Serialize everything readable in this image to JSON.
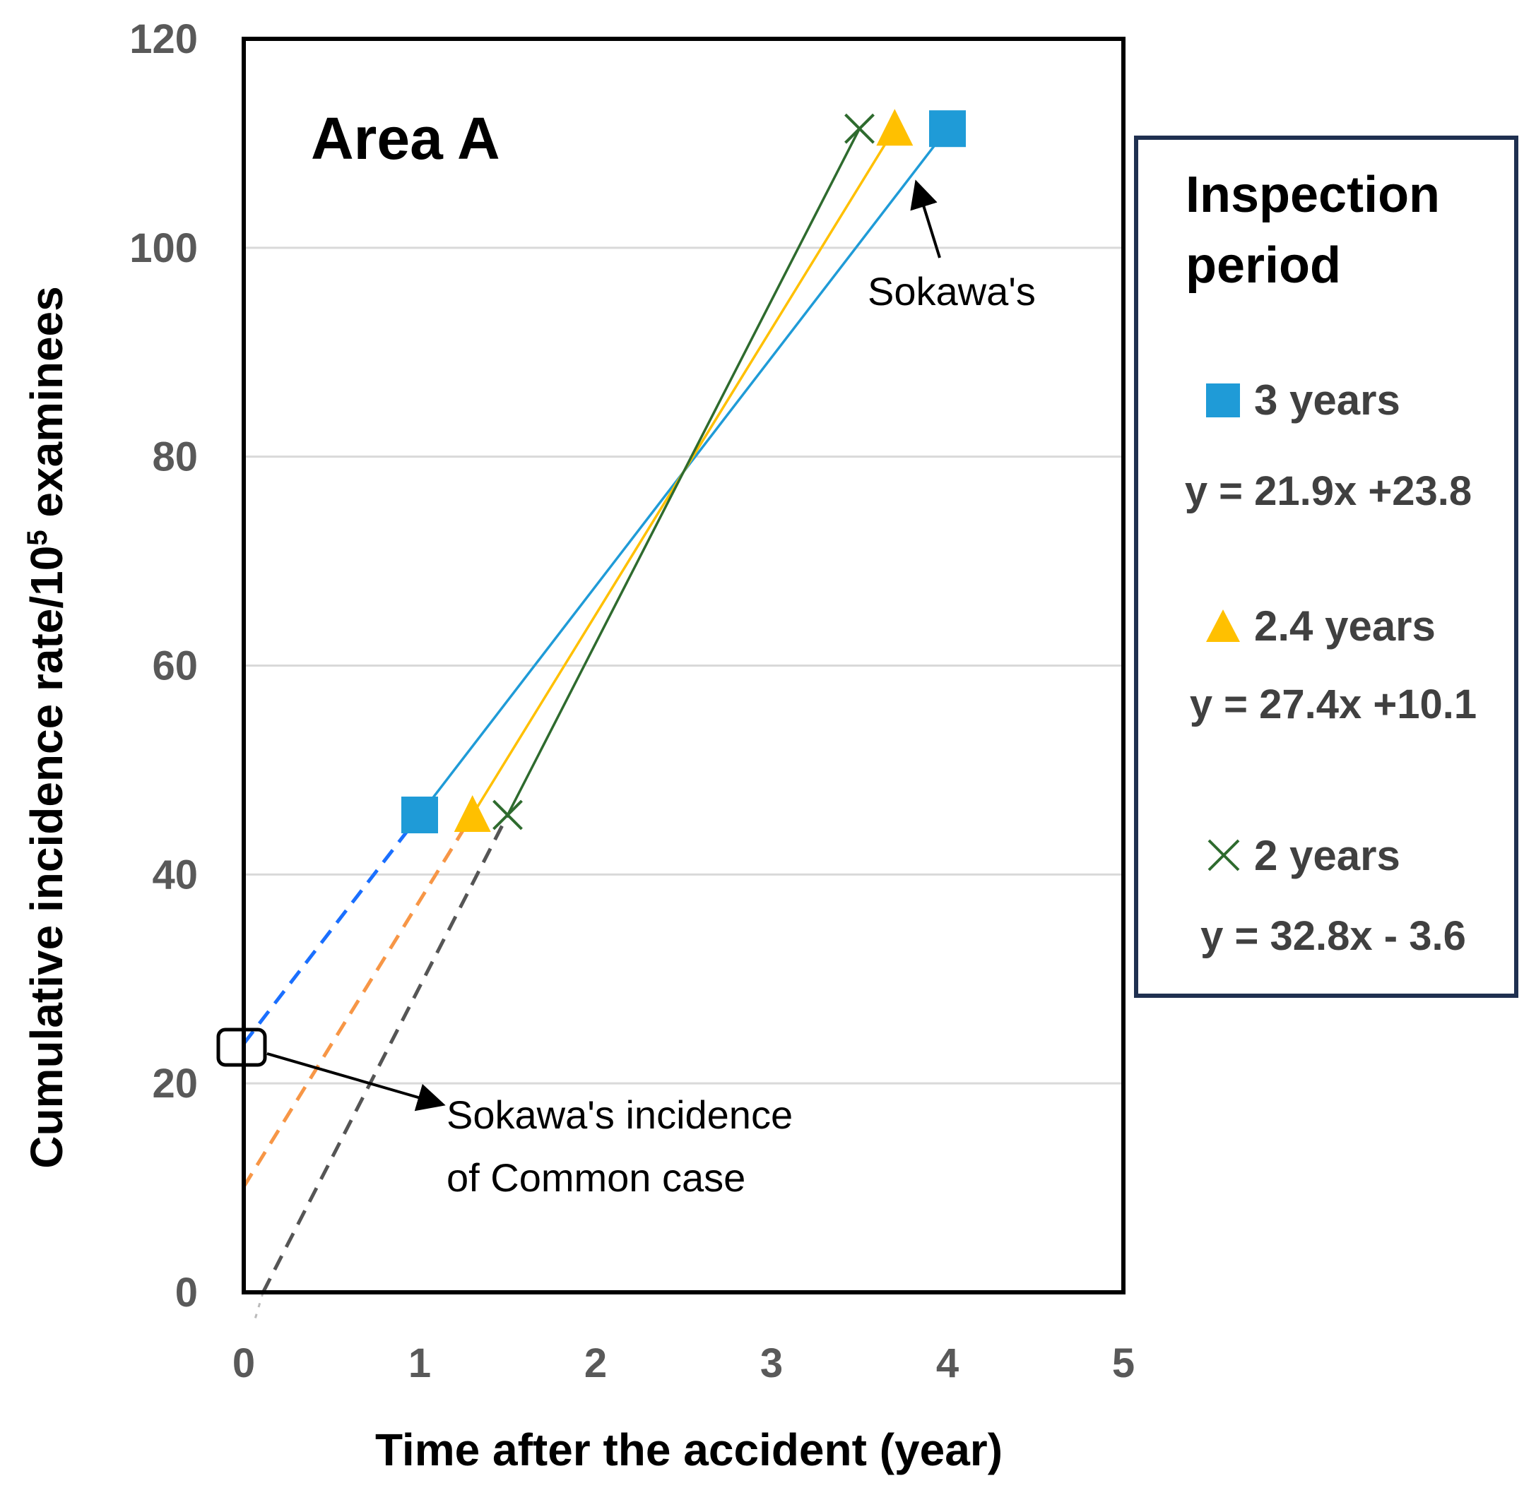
{
  "chart_data": {
    "type": "line",
    "title": "Area A",
    "xlabel": "Time after the accident (year)",
    "ylabel_main": "Cumulative incidence rate/10",
    "ylabel_sup": "5",
    "ylabel_tail": " examinees",
    "xlim": [
      0,
      5
    ],
    "ylim": [
      0,
      120
    ],
    "xticks": [
      "0",
      "1",
      "2",
      "3",
      "4",
      "5"
    ],
    "yticks": [
      "0",
      "20",
      "40",
      "60",
      "80",
      "100",
      "120"
    ],
    "grid": "horizontal",
    "series": [
      {
        "name": "3 years",
        "marker": "square",
        "color": "#1f9bd7",
        "extension_color": "#1a6fff",
        "equation": "y = 21.9x +23.8",
        "slope": 21.9,
        "intercept": 23.8,
        "x": [
          1.0,
          4.0
        ],
        "y": [
          45.7,
          111.4
        ]
      },
      {
        "name": "2.4 years",
        "marker": "triangle",
        "color": "#ffc000",
        "extension_color": "#f79646",
        "equation": "y = 27.4x +10.1",
        "slope": 27.4,
        "intercept": 10.1,
        "x": [
          1.3,
          3.7
        ],
        "y": [
          45.7,
          111.4
        ]
      },
      {
        "name": "2 years",
        "marker": "x",
        "color": "#2e6b2e",
        "extension_color": "#555555",
        "equation": "y = 32.8x - 3.6",
        "slope": 32.8,
        "intercept": -3.6,
        "x": [
          1.5,
          3.5
        ],
        "y": [
          45.7,
          111.4
        ]
      }
    ],
    "annotations": {
      "top_point": "Sokawa's",
      "intercept_line1": "Sokawa's incidence",
      "intercept_line2": "of Common case"
    },
    "legend": {
      "title_line1": "Inspection",
      "title_line2": "period",
      "placement": "right"
    }
  }
}
